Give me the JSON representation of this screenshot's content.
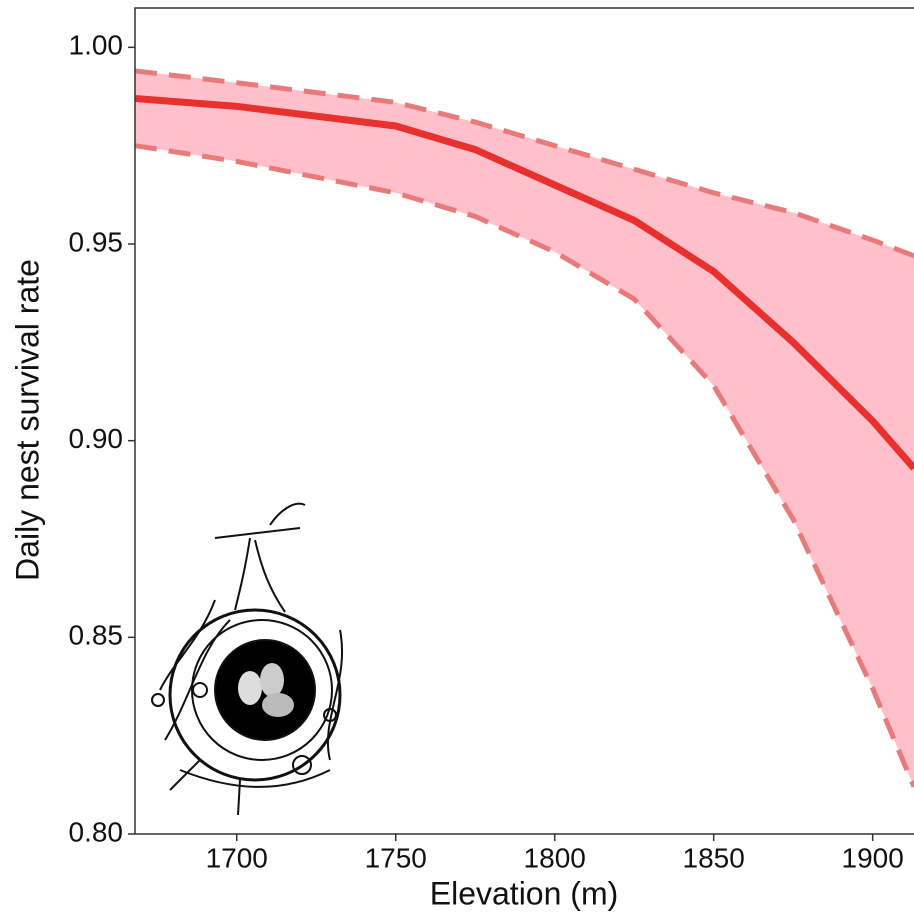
{
  "chart_data": {
    "type": "line",
    "x_label": "Elevation (m)",
    "y_label": "Daily nest survival rate",
    "x": [
      1668,
      1700,
      1750,
      1775,
      1800,
      1825,
      1850,
      1875,
      1900,
      1913
    ],
    "series": [
      {
        "color": "#e8302f",
        "dash": "solid",
        "values": [
          0.987,
          0.985,
          0.98,
          0.974,
          0.965,
          0.956,
          0.943,
          0.925,
          0.905,
          0.893
        ]
      },
      {
        "color": "#e87a7a",
        "dash": "dashed",
        "values": [
          0.994,
          0.991,
          0.986,
          0.981,
          0.975,
          0.969,
          0.963,
          0.958,
          0.951,
          0.947
        ]
      },
      {
        "color": "#e87a7a",
        "dash": "dashed",
        "values": [
          0.975,
          0.971,
          0.963,
          0.957,
          0.948,
          0.936,
          0.914,
          0.88,
          0.837,
          0.812
        ]
      }
    ],
    "band_color": "#ffc0cb",
    "xlim": [
      1668,
      1913
    ],
    "ylim": [
      0.8,
      1.01
    ],
    "xticks": [
      1700,
      1750,
      1800,
      1850,
      1900
    ],
    "yticks": [
      {
        "value": 0.8,
        "label": "0.80"
      },
      {
        "value": 0.85,
        "label": "0.85"
      },
      {
        "value": 0.9,
        "label": "0.90"
      },
      {
        "value": 0.95,
        "label": "0.95"
      },
      {
        "value": 1.0,
        "label": "1.00"
      }
    ]
  }
}
